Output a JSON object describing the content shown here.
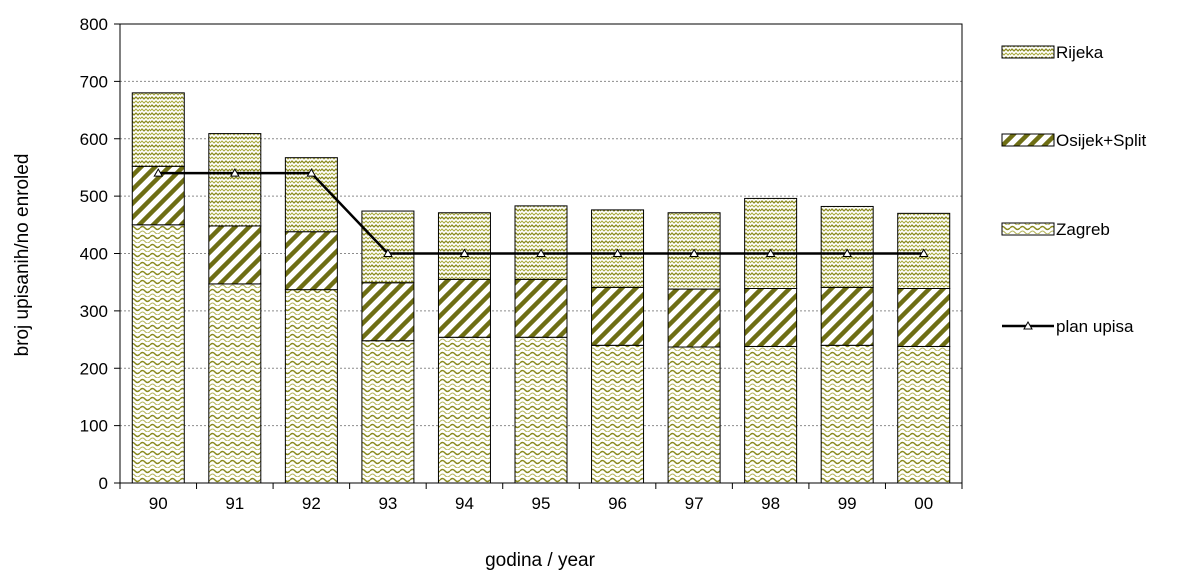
{
  "chart_data": {
    "type": "bar",
    "stacked": true,
    "categories": [
      "90",
      "91",
      "92",
      "93",
      "94",
      "95",
      "96",
      "97",
      "98",
      "99",
      "00"
    ],
    "series": [
      {
        "name": "Zagreb",
        "type": "bar",
        "values": [
          450,
          347,
          337,
          248,
          254,
          254,
          240,
          237,
          238,
          240,
          238
        ],
        "color": "#8a8a1e"
      },
      {
        "name": "Osijek+Split",
        "type": "bar",
        "values": [
          102,
          101,
          101,
          101,
          101,
          101,
          101,
          101,
          101,
          101,
          101
        ],
        "color": "#8a8a1e"
      },
      {
        "name": "Rijeka",
        "type": "bar",
        "values": [
          128,
          161,
          129,
          125,
          116,
          128,
          135,
          133,
          157,
          141,
          131
        ],
        "color": "#8a8a1e"
      },
      {
        "name": "plan upisa",
        "type": "line",
        "values": [
          540,
          540,
          540,
          400,
          400,
          400,
          400,
          400,
          400,
          400,
          400
        ],
        "color": "#000000"
      }
    ],
    "legend_order": [
      "Rijeka",
      "Osijek+Split",
      "Zagreb",
      "plan upisa"
    ],
    "title": "",
    "xlabel": "godina / year",
    "ylabel": "broj upisanih/no enroled",
    "ylim": [
      0,
      800
    ],
    "yticks": [
      0,
      100,
      200,
      300,
      400,
      500,
      600,
      700,
      800
    ],
    "grid": true,
    "legend_position": "right"
  }
}
